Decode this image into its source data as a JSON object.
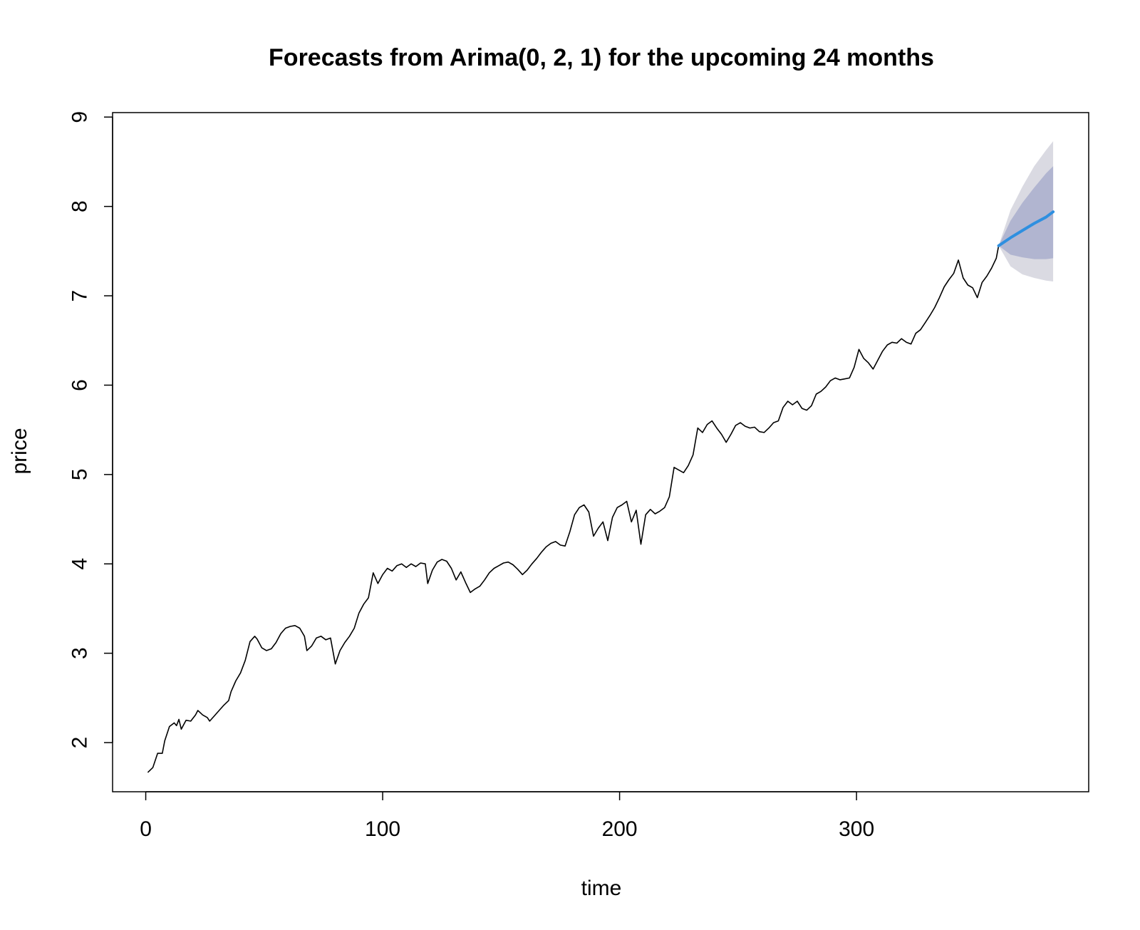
{
  "chart_data": {
    "type": "line",
    "title": "Forecasts from Arima(0, 2, 1) for the upcoming 24 months",
    "xlabel": "time",
    "ylabel": "price",
    "xlim": [
      -14,
      398
    ],
    "ylim": [
      1.45,
      9.05
    ],
    "x_ticks": [
      0,
      100,
      200,
      300
    ],
    "y_ticks": [
      2,
      3,
      4,
      5,
      6,
      7,
      8,
      9
    ],
    "grid": false,
    "legend": "none",
    "colors": {
      "history": "#000000",
      "forecast": "#2e8fe0",
      "band_80": "#b1b5d0",
      "band_95": "#dadae2",
      "frame": "#000000"
    },
    "series": [
      {
        "values_xy": [
          [
            1,
            1.67
          ],
          [
            3,
            1.72
          ],
          [
            5,
            1.88
          ],
          [
            7,
            1.88
          ],
          [
            8,
            2.02
          ],
          [
            10,
            2.18
          ],
          [
            12,
            2.22
          ],
          [
            13,
            2.19
          ],
          [
            14,
            2.26
          ],
          [
            15,
            2.15
          ],
          [
            17,
            2.25
          ],
          [
            19,
            2.24
          ],
          [
            21,
            2.31
          ],
          [
            22,
            2.36
          ],
          [
            24,
            2.31
          ],
          [
            26,
            2.28
          ],
          [
            27,
            2.24
          ],
          [
            29,
            2.3
          ],
          [
            31,
            2.36
          ],
          [
            33,
            2.42
          ],
          [
            35,
            2.47
          ],
          [
            36,
            2.57
          ],
          [
            38,
            2.69
          ],
          [
            40,
            2.78
          ],
          [
            42,
            2.92
          ],
          [
            44,
            3.13
          ],
          [
            46,
            3.19
          ],
          [
            47,
            3.16
          ],
          [
            49,
            3.06
          ],
          [
            51,
            3.03
          ],
          [
            53,
            3.05
          ],
          [
            55,
            3.12
          ],
          [
            57,
            3.22
          ],
          [
            59,
            3.28
          ],
          [
            61,
            3.3
          ],
          [
            63,
            3.31
          ],
          [
            65,
            3.28
          ],
          [
            67,
            3.19
          ],
          [
            68,
            3.03
          ],
          [
            70,
            3.08
          ],
          [
            72,
            3.17
          ],
          [
            74,
            3.19
          ],
          [
            76,
            3.15
          ],
          [
            78,
            3.17
          ],
          [
            80,
            2.88
          ],
          [
            82,
            3.03
          ],
          [
            84,
            3.12
          ],
          [
            86,
            3.19
          ],
          [
            88,
            3.28
          ],
          [
            90,
            3.45
          ],
          [
            92,
            3.55
          ],
          [
            94,
            3.62
          ],
          [
            96,
            3.9
          ],
          [
            98,
            3.78
          ],
          [
            100,
            3.88
          ],
          [
            102,
            3.95
          ],
          [
            104,
            3.92
          ],
          [
            106,
            3.98
          ],
          [
            108,
            4.0
          ],
          [
            110,
            3.96
          ],
          [
            112,
            4.0
          ],
          [
            114,
            3.97
          ],
          [
            116,
            4.01
          ],
          [
            118,
            4.0
          ],
          [
            119,
            3.78
          ],
          [
            121,
            3.93
          ],
          [
            123,
            4.02
          ],
          [
            125,
            4.05
          ],
          [
            127,
            4.03
          ],
          [
            129,
            3.95
          ],
          [
            131,
            3.82
          ],
          [
            133,
            3.91
          ],
          [
            135,
            3.79
          ],
          [
            137,
            3.68
          ],
          [
            139,
            3.72
          ],
          [
            141,
            3.75
          ],
          [
            143,
            3.82
          ],
          [
            145,
            3.9
          ],
          [
            147,
            3.95
          ],
          [
            149,
            3.98
          ],
          [
            151,
            4.01
          ],
          [
            153,
            4.02
          ],
          [
            155,
            3.99
          ],
          [
            157,
            3.94
          ],
          [
            159,
            3.88
          ],
          [
            161,
            3.93
          ],
          [
            163,
            4.0
          ],
          [
            165,
            4.06
          ],
          [
            167,
            4.13
          ],
          [
            169,
            4.19
          ],
          [
            171,
            4.23
          ],
          [
            173,
            4.25
          ],
          [
            175,
            4.21
          ],
          [
            177,
            4.2
          ],
          [
            179,
            4.36
          ],
          [
            181,
            4.55
          ],
          [
            183,
            4.63
          ],
          [
            185,
            4.66
          ],
          [
            187,
            4.58
          ],
          [
            189,
            4.31
          ],
          [
            191,
            4.4
          ],
          [
            193,
            4.47
          ],
          [
            195,
            4.26
          ],
          [
            197,
            4.52
          ],
          [
            199,
            4.63
          ],
          [
            201,
            4.66
          ],
          [
            203,
            4.7
          ],
          [
            205,
            4.47
          ],
          [
            207,
            4.6
          ],
          [
            209,
            4.22
          ],
          [
            211,
            4.55
          ],
          [
            213,
            4.61
          ],
          [
            215,
            4.56
          ],
          [
            217,
            4.59
          ],
          [
            219,
            4.63
          ],
          [
            221,
            4.75
          ],
          [
            223,
            5.08
          ],
          [
            225,
            5.05
          ],
          [
            227,
            5.02
          ],
          [
            229,
            5.1
          ],
          [
            231,
            5.22
          ],
          [
            233,
            5.52
          ],
          [
            235,
            5.47
          ],
          [
            237,
            5.56
          ],
          [
            239,
            5.6
          ],
          [
            241,
            5.52
          ],
          [
            243,
            5.45
          ],
          [
            245,
            5.36
          ],
          [
            247,
            5.45
          ],
          [
            249,
            5.55
          ],
          [
            251,
            5.58
          ],
          [
            253,
            5.54
          ],
          [
            255,
            5.52
          ],
          [
            257,
            5.53
          ],
          [
            259,
            5.48
          ],
          [
            261,
            5.47
          ],
          [
            263,
            5.52
          ],
          [
            265,
            5.58
          ],
          [
            267,
            5.6
          ],
          [
            269,
            5.75
          ],
          [
            271,
            5.82
          ],
          [
            273,
            5.78
          ],
          [
            275,
            5.82
          ],
          [
            277,
            5.74
          ],
          [
            279,
            5.72
          ],
          [
            281,
            5.77
          ],
          [
            283,
            5.9
          ],
          [
            285,
            5.93
          ],
          [
            287,
            5.98
          ],
          [
            289,
            6.05
          ],
          [
            291,
            6.08
          ],
          [
            293,
            6.06
          ],
          [
            295,
            6.07
          ],
          [
            297,
            6.08
          ],
          [
            299,
            6.2
          ],
          [
            301,
            6.4
          ],
          [
            303,
            6.3
          ],
          [
            305,
            6.25
          ],
          [
            307,
            6.18
          ],
          [
            309,
            6.28
          ],
          [
            311,
            6.38
          ],
          [
            313,
            6.45
          ],
          [
            315,
            6.48
          ],
          [
            317,
            6.47
          ],
          [
            319,
            6.52
          ],
          [
            321,
            6.48
          ],
          [
            323,
            6.46
          ],
          [
            325,
            6.58
          ],
          [
            327,
            6.62
          ],
          [
            329,
            6.7
          ],
          [
            331,
            6.78
          ],
          [
            333,
            6.87
          ],
          [
            335,
            6.98
          ],
          [
            337,
            7.1
          ],
          [
            339,
            7.18
          ],
          [
            341,
            7.25
          ],
          [
            343,
            7.4
          ],
          [
            345,
            7.2
          ],
          [
            347,
            7.12
          ],
          [
            349,
            7.09
          ],
          [
            351,
            6.98
          ],
          [
            353,
            7.15
          ],
          [
            355,
            7.22
          ],
          [
            357,
            7.31
          ],
          [
            359,
            7.42
          ],
          [
            360,
            7.56
          ]
        ]
      },
      {
        "values_xy": [
          [
            360,
            7.56
          ],
          [
            365,
            7.65
          ],
          [
            370,
            7.73
          ],
          [
            375,
            7.81
          ],
          [
            380,
            7.88
          ],
          [
            383,
            7.94
          ]
        ]
      }
    ],
    "bands": [
      {
        "level": 95,
        "upper": [
          [
            360,
            7.56
          ],
          [
            365,
            7.96
          ],
          [
            370,
            8.22
          ],
          [
            375,
            8.45
          ],
          [
            380,
            8.63
          ],
          [
            383,
            8.73
          ]
        ],
        "lower": [
          [
            360,
            7.56
          ],
          [
            365,
            7.33
          ],
          [
            370,
            7.24
          ],
          [
            375,
            7.2
          ],
          [
            380,
            7.17
          ],
          [
            383,
            7.16
          ]
        ]
      },
      {
        "level": 80,
        "upper": [
          [
            360,
            7.56
          ],
          [
            365,
            7.84
          ],
          [
            370,
            8.04
          ],
          [
            375,
            8.21
          ],
          [
            380,
            8.37
          ],
          [
            383,
            8.45
          ]
        ],
        "lower": [
          [
            360,
            7.56
          ],
          [
            365,
            7.46
          ],
          [
            370,
            7.43
          ],
          [
            375,
            7.41
          ],
          [
            380,
            7.41
          ],
          [
            383,
            7.42
          ]
        ]
      }
    ]
  }
}
